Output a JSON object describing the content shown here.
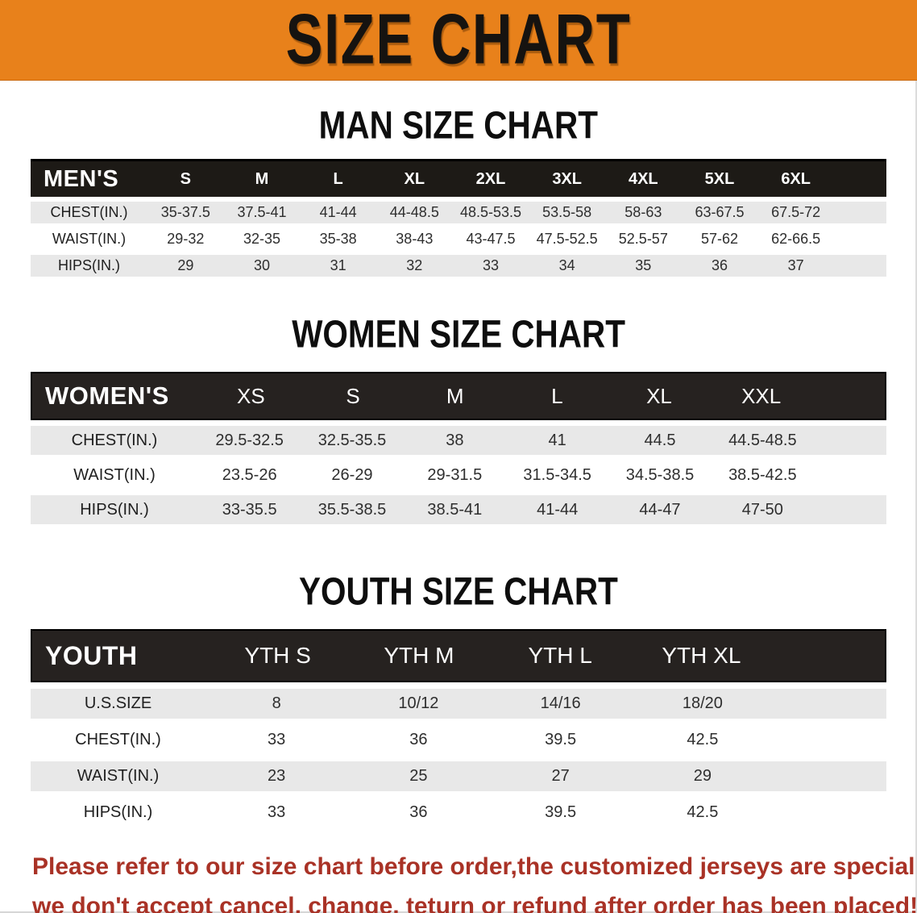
{
  "banner": {
    "title": "SIZE CHART"
  },
  "palette": {
    "banner_bg": "#e8811b",
    "header_bar": "#1d1a16",
    "row_stripe": "#e8e8e8",
    "notice_red": "#a93226"
  },
  "sections": [
    {
      "id": "men",
      "heading": "MAN SIZE CHART",
      "header_label": "MEN'S",
      "columns": [
        "S",
        "M",
        "L",
        "XL",
        "2XL",
        "3XL",
        "4XL",
        "5XL",
        "6XL"
      ],
      "rows": [
        {
          "label": "CHEST(IN.)",
          "values": [
            "35-37.5",
            "37.5-41",
            "41-44",
            "44-48.5",
            "48.5-53.5",
            "53.5-58",
            "58-63",
            "63-67.5",
            "67.5-72"
          ]
        },
        {
          "label": "WAIST(IN.)",
          "values": [
            "29-32",
            "32-35",
            "35-38",
            "38-43",
            "43-47.5",
            "47.5-52.5",
            "52.5-57",
            "57-62",
            "62-66.5"
          ]
        },
        {
          "label": "HIPS(IN.)",
          "values": [
            "29",
            "30",
            "31",
            "32",
            "33",
            "34",
            "35",
            "36",
            "37"
          ]
        }
      ]
    },
    {
      "id": "women",
      "heading": "WOMEN SIZE CHART",
      "header_label": "WOMEN'S",
      "columns": [
        "XS",
        "S",
        "M",
        "L",
        "XL",
        "XXL"
      ],
      "rows": [
        {
          "label": "CHEST(IN.)",
          "values": [
            "29.5-32.5",
            "32.5-35.5",
            "38",
            "41",
            "44.5",
            "44.5-48.5"
          ]
        },
        {
          "label": "WAIST(IN.)",
          "values": [
            "23.5-26",
            "26-29",
            "29-31.5",
            "31.5-34.5",
            "34.5-38.5",
            "38.5-42.5"
          ]
        },
        {
          "label": "HIPS(IN.)",
          "values": [
            "33-35.5",
            "35.5-38.5",
            "38.5-41",
            "41-44",
            "44-47",
            "47-50"
          ]
        }
      ]
    },
    {
      "id": "youth",
      "heading": "YOUTH SIZE CHART",
      "header_label": "YOUTH",
      "columns": [
        "YTH S",
        "YTH M",
        "YTH L",
        "YTH XL"
      ],
      "rows": [
        {
          "label": "U.S.SIZE",
          "values": [
            "8",
            "10/12",
            "14/16",
            "18/20"
          ]
        },
        {
          "label": "CHEST(IN.)",
          "values": [
            "33",
            "36",
            "39.5",
            "42.5"
          ]
        },
        {
          "label": "WAIST(IN.)",
          "values": [
            "23",
            "25",
            "27",
            "29"
          ]
        },
        {
          "label": "HIPS(IN.)",
          "values": [
            "33",
            "36",
            "39.5",
            "42.5"
          ]
        }
      ]
    }
  ],
  "footer": {
    "line1": "Please refer to our size chart before order,the customized jerseys are special products,",
    "line2": "we don't accept cancel, change, teturn or refund after order has been placed!"
  }
}
